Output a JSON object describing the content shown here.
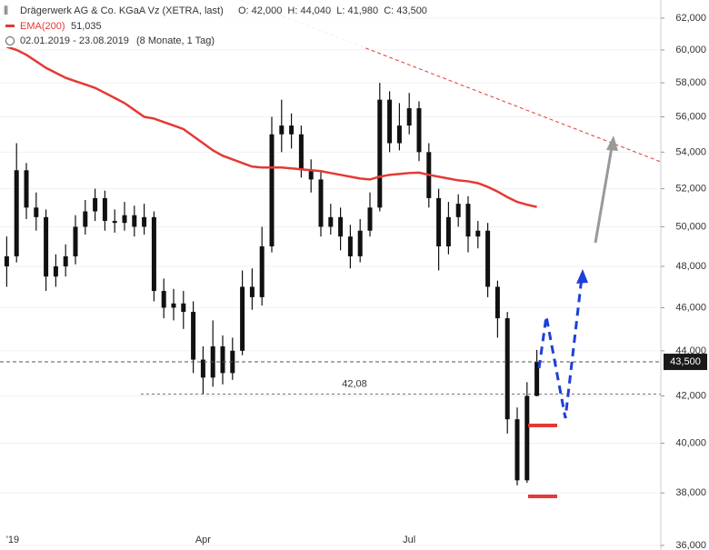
{
  "chart_data": {
    "type": "candlestick",
    "title": "Drägerwerk AG & Co. KGaA Vz (XETRA, last)",
    "ohlc_label": "O: 42,000  H: 44,040  L: 41,980  C: 43,500",
    "range_label": "02.01.2019 - 23.08.2019",
    "range_note": "(8 Monate, 1 Tag)",
    "log_scale": true,
    "grid": true,
    "ylim": [
      35830,
      63170
    ],
    "yticks": [
      {
        "value": 36000,
        "label": "36,000"
      },
      {
        "value": 38000,
        "label": "38,000"
      },
      {
        "value": 40000,
        "label": "40,000"
      },
      {
        "value": 42000,
        "label": "42,000"
      },
      {
        "value": 44000,
        "label": "44,000"
      },
      {
        "value": 46000,
        "label": "46,000"
      },
      {
        "value": 48000,
        "label": "48,000"
      },
      {
        "value": 50000,
        "label": "50,000"
      },
      {
        "value": 52000,
        "label": "52,000"
      },
      {
        "value": 54000,
        "label": "54,000"
      },
      {
        "value": 56000,
        "label": "56,000"
      },
      {
        "value": 58000,
        "label": "58,000"
      },
      {
        "value": 60000,
        "label": "60,000"
      },
      {
        "value": 62000,
        "label": "62,000"
      }
    ],
    "categories": [
      "'19",
      null,
      null,
      null,
      null,
      null,
      null,
      null,
      null,
      null,
      null,
      null,
      null,
      null,
      null,
      null,
      null,
      null,
      null,
      null,
      "Apr",
      null,
      null,
      null,
      null,
      null,
      null,
      null,
      null,
      null,
      null,
      null,
      null,
      null,
      null,
      null,
      null,
      null,
      null,
      null,
      null,
      "Jul",
      null,
      null,
      null,
      null,
      null,
      null,
      null,
      null,
      null,
      null,
      null,
      null,
      null
    ],
    "candles": {
      "color": "#111111",
      "open": [
        48000,
        48500,
        53000,
        51000,
        50500,
        47500,
        48000,
        48500,
        50000,
        50800,
        51500,
        50300,
        50200,
        50600,
        50000,
        50500,
        46800,
        46000,
        46200,
        45800,
        43600,
        42800,
        44200,
        43000,
        44000,
        47000,
        46500,
        49000,
        55000,
        55500,
        55000,
        53000,
        52500,
        50000,
        50500,
        49500,
        48500,
        49800,
        51000,
        57000,
        54500,
        55500,
        56500,
        54000,
        51500,
        49000,
        50500,
        51200,
        49500,
        49800,
        47000,
        45500,
        41000,
        38500,
        42000
      ],
      "high": [
        49500,
        54500,
        53400,
        51800,
        50900,
        48600,
        49100,
        50600,
        51400,
        52000,
        51900,
        50900,
        51300,
        51100,
        51200,
        50800,
        47400,
        46900,
        46800,
        46300,
        44200,
        45400,
        44700,
        44600,
        47800,
        47900,
        50000,
        56000,
        57000,
        56200,
        55500,
        53600,
        53000,
        51200,
        51000,
        50100,
        50400,
        51800,
        58000,
        57500,
        56800,
        57400,
        56900,
        54500,
        52000,
        51300,
        51700,
        51600,
        50300,
        50200,
        47300,
        45800,
        41500,
        42600,
        44040
      ],
      "low": [
        47000,
        48200,
        50400,
        49800,
        46800,
        47000,
        47500,
        48100,
        49600,
        50300,
        49800,
        49700,
        49800,
        49500,
        49600,
        46300,
        45500,
        45400,
        45000,
        43000,
        42080,
        42400,
        42500,
        42700,
        43800,
        45900,
        46100,
        48700,
        54000,
        54200,
        52600,
        51800,
        49500,
        49600,
        48800,
        47900,
        48200,
        49500,
        50800,
        54000,
        54100,
        55000,
        53500,
        51000,
        47800,
        48600,
        50000,
        48700,
        48900,
        46500,
        44600,
        40400,
        38300,
        38400,
        41980
      ],
      "close": [
        48500,
        53000,
        51000,
        50500,
        47500,
        48000,
        48500,
        50000,
        50800,
        51500,
        50300,
        50200,
        50600,
        50000,
        50500,
        46800,
        46000,
        46200,
        45800,
        43600,
        42800,
        44200,
        43000,
        44000,
        47000,
        46500,
        49000,
        55000,
        55500,
        55000,
        53000,
        52500,
        50000,
        50500,
        49500,
        48500,
        49800,
        51000,
        57000,
        54500,
        55500,
        56500,
        54000,
        51500,
        49000,
        50500,
        51200,
        49500,
        49800,
        47000,
        45500,
        41000,
        38500,
        42000,
        43500
      ]
    },
    "series": [
      {
        "name": "EMA(200)",
        "color": "#e53935",
        "value_label": "51,035",
        "values": [
          60200,
          60000,
          59700,
          59300,
          58900,
          58600,
          58300,
          58100,
          57900,
          57700,
          57400,
          57100,
          56800,
          56400,
          56000,
          55900,
          55700,
          55500,
          55300,
          54900,
          54500,
          54100,
          53800,
          53600,
          53400,
          53200,
          53150,
          53150,
          53150,
          53100,
          53050,
          53000,
          52950,
          52850,
          52750,
          52650,
          52550,
          52500,
          52650,
          52750,
          52800,
          52850,
          52870,
          52750,
          52650,
          52550,
          52450,
          52400,
          52300,
          52100,
          51850,
          51550,
          51300,
          51150,
          51035
        ]
      }
    ],
    "last_price": {
      "value": 43500,
      "label": "43,500"
    },
    "support": {
      "value": 42080,
      "label": "42,08"
    }
  }
}
